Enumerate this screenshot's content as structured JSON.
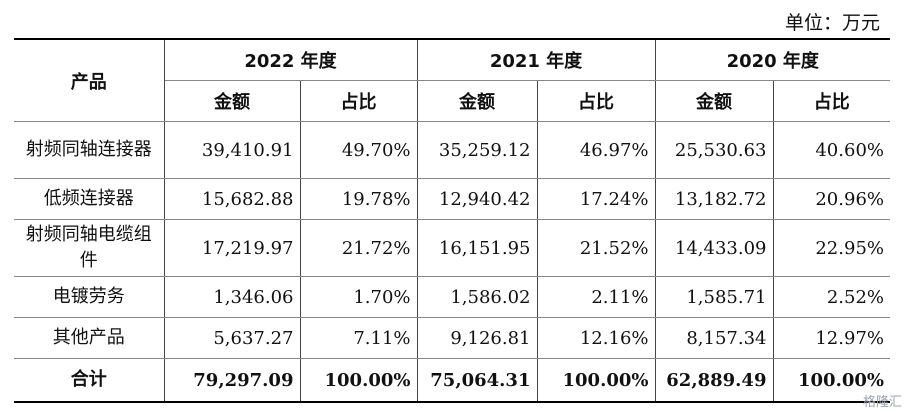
{
  "unit_label": "单位：万元",
  "header": {
    "product": "产品",
    "years": [
      "2022 年度",
      "2021 年度",
      "2020 年度"
    ],
    "amount": "金额",
    "ratio": "占比"
  },
  "rows": [
    {
      "name": "射频同轴连接器",
      "values": [
        "39,410.91",
        "49.70%",
        "35,259.12",
        "46.97%",
        "25,530.63",
        "40.60%"
      ]
    },
    {
      "name": "低频连接器",
      "values": [
        "15,682.88",
        "19.78%",
        "12,940.42",
        "17.24%",
        "13,182.72",
        "20.96%"
      ]
    },
    {
      "name": "射频同轴电缆组件",
      "values": [
        "17,219.97",
        "21.72%",
        "16,151.95",
        "21.52%",
        "14,433.09",
        "22.95%"
      ]
    },
    {
      "name": "电镀劳务",
      "values": [
        "1,346.06",
        "1.70%",
        "1,586.02",
        "2.11%",
        "1,585.71",
        "2.52%"
      ]
    },
    {
      "name": "其他产品",
      "values": [
        "5,637.27",
        "7.11%",
        "9,126.81",
        "12.16%",
        "8,157.34",
        "12.97%"
      ]
    }
  ],
  "total": {
    "name": "合计",
    "values": [
      "79,297.09",
      "100.00%",
      "75,064.31",
      "100.00%",
      "62,889.49",
      "100.00%"
    ]
  },
  "watermark": "格隆汇"
}
